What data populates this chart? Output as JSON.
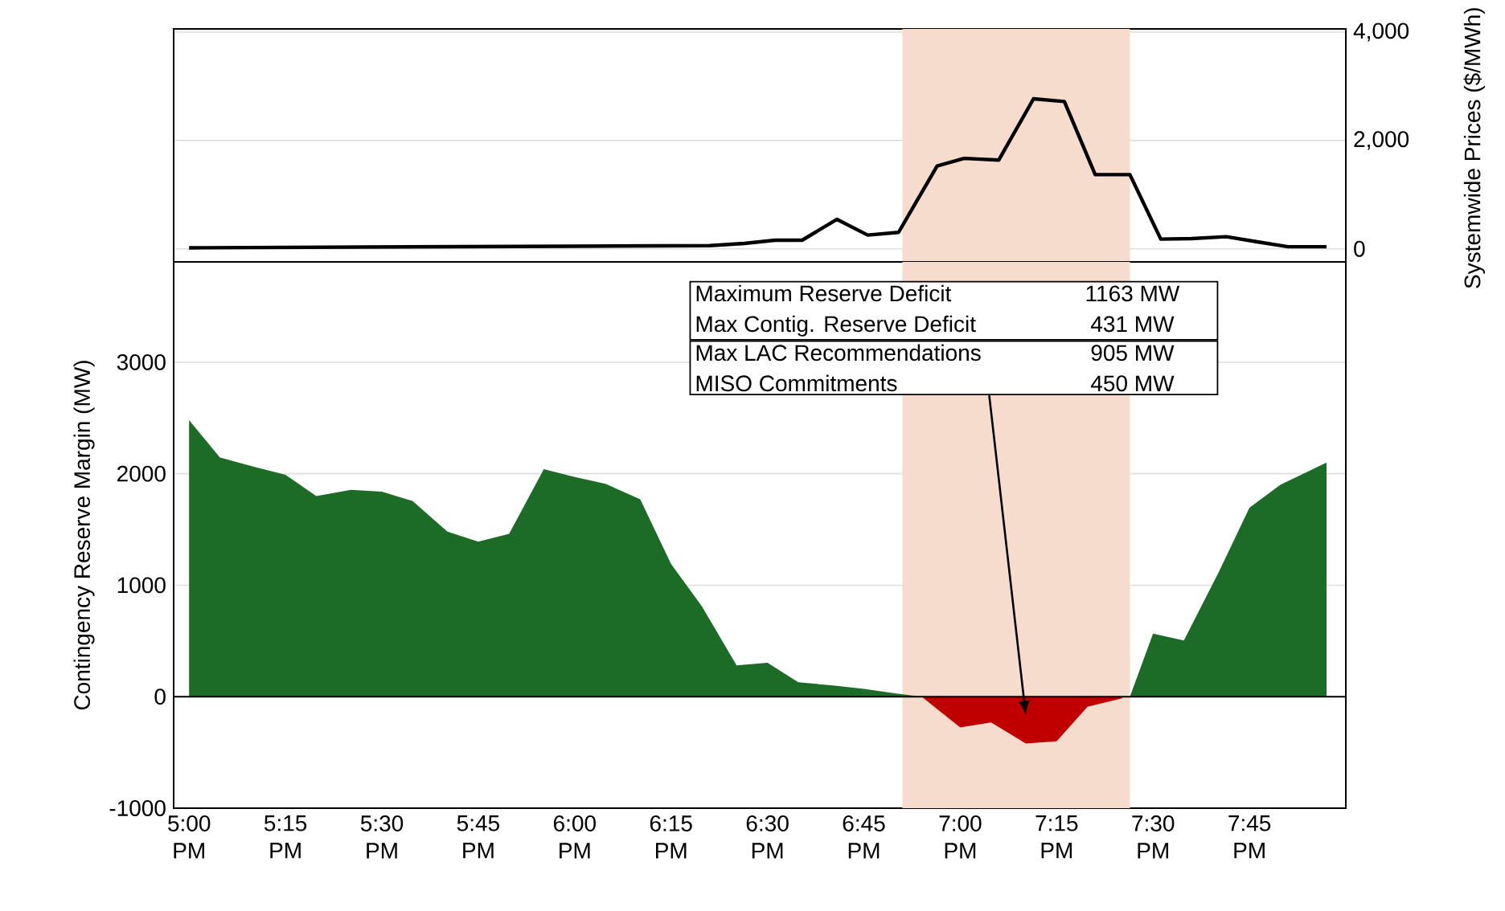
{
  "chart_data": [
    {
      "type": "line",
      "xlim": [
        16.96,
        20.0
      ],
      "y2lim": [
        -240,
        4060
      ],
      "y2ticks": [
        0,
        {
          "value": 2000,
          "label": "2,000"
        },
        {
          "value": 4000,
          "label": "4,000"
        }
      ],
      "y2label": "Systemwide Prices ($/MWh)",
      "grid": "y",
      "tick_labels": "y",
      "bands": [
        {
          "axis": "x",
          "from": 18.85,
          "to": 19.44,
          "color": "#f6dccd"
        }
      ],
      "series": [
        {
          "color": "#000000",
          "axis": "y2",
          "x": [
            17.0,
            17.5,
            18.0,
            18.35,
            18.44,
            18.52,
            18.59,
            18.68,
            18.76,
            18.84,
            18.94,
            19.01,
            19.1,
            19.19,
            19.27,
            19.35,
            19.44,
            19.52,
            19.6,
            19.69,
            19.77,
            19.85,
            19.95
          ],
          "values": [
            20,
            35,
            50,
            60,
            100,
            160,
            160,
            545,
            255,
            305,
            1530,
            1670,
            1640,
            2770,
            2720,
            1370,
            1370,
            180,
            190,
            225,
            130,
            40,
            40
          ]
        }
      ]
    },
    {
      "type": "area",
      "xlim": [
        16.96,
        20.0
      ],
      "ylim": [
        -1000,
        3900
      ],
      "yticks": [
        -1000,
        0,
        1000,
        2000,
        3000
      ],
      "ylabel": "Contingency Reserve Margin (MW)",
      "grid": "y",
      "xticks": [
        {
          "value": 17.0,
          "label": "5:00 PM"
        },
        {
          "value": 17.25,
          "label": "5:15 PM"
        },
        {
          "value": 17.5,
          "label": "5:30 PM"
        },
        {
          "value": 17.75,
          "label": "5:45 PM"
        },
        {
          "value": 18.0,
          "label": "6:00 PM"
        },
        {
          "value": 18.25,
          "label": "6:15 PM"
        },
        {
          "value": 18.5,
          "label": "6:30 PM"
        },
        {
          "value": 18.75,
          "label": "6:45 PM"
        },
        {
          "value": 19.0,
          "label": "7:00 PM"
        },
        {
          "value": 19.25,
          "label": "7:15 PM"
        },
        {
          "value": 19.5,
          "label": "7:30 PM"
        },
        {
          "value": 19.75,
          "label": "7:45 PM"
        }
      ],
      "bands": [
        {
          "axis": "x",
          "from": 18.85,
          "to": 19.44,
          "color": "#f6dccd"
        }
      ],
      "annotations": [
        "Maximum Reserve Deficit",
        "1163 MW",
        "Max Contig. Reserve Deficit",
        "431 MW",
        "Max LAC Recommendations",
        "905 MW",
        "MISO Commitments",
        "450 MW"
      ],
      "series": [
        {
          "color": "#1c6b26",
          "x": [
            17.0,
            17.08,
            17.17,
            17.25,
            17.33,
            17.42,
            17.5,
            17.58,
            17.67,
            17.75,
            17.83,
            17.92,
            18.0,
            18.08,
            18.17,
            18.25,
            18.33,
            18.42,
            18.5,
            18.58,
            18.67,
            18.75,
            18.83,
            18.9
          ],
          "values": [
            2480,
            2145,
            2060,
            1990,
            1800,
            1855,
            1840,
            1755,
            1480,
            1390,
            1460,
            2040,
            1970,
            1910,
            1770,
            1190,
            810,
            280,
            305,
            130,
            100,
            70,
            30,
            0
          ]
        },
        {
          "color": "#c00000",
          "x": [
            18.9,
            19.0,
            19.08,
            19.17,
            19.25,
            19.33,
            19.42
          ],
          "values": [
            0,
            -275,
            -230,
            -420,
            -400,
            -90,
            -15
          ]
        },
        {
          "color": "#1c6b26",
          "x": [
            19.44,
            19.5,
            19.58,
            19.67,
            19.75,
            19.83,
            19.95
          ],
          "values": [
            0,
            565,
            505,
            1115,
            1695,
            1900,
            2100
          ]
        }
      ]
    }
  ]
}
